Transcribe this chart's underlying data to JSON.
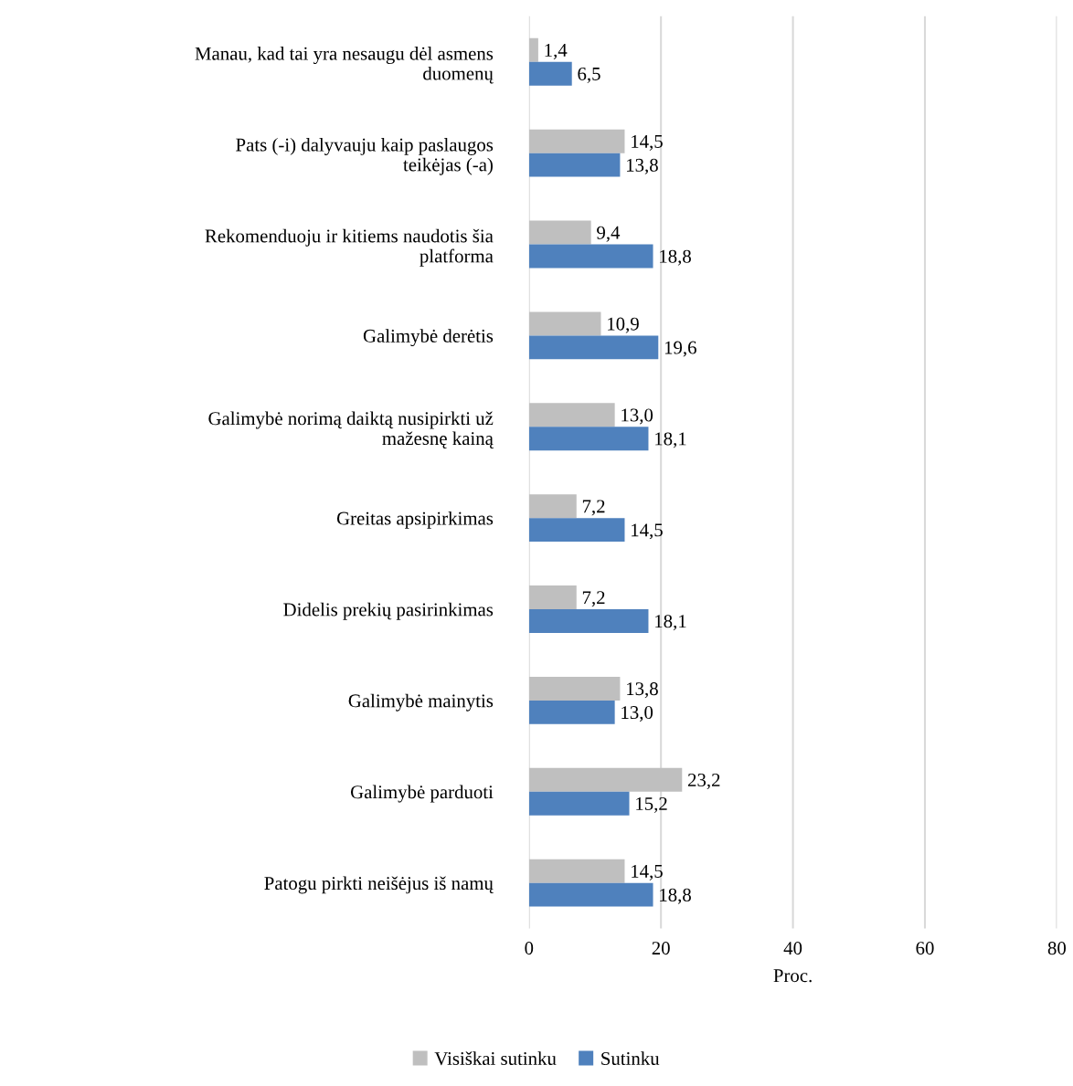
{
  "chart_data": {
    "type": "bar",
    "orientation": "horizontal",
    "categories": [
      "Manau, kad tai yra nesaugu dėl asmens duomenų",
      "Pats (-i) dalyvauju kaip paslaugos teikėjas (-a)",
      "Rekomenduoju ir kitiems naudotis šia platforma",
      "Galimybė derėtis",
      "Galimybė norimą daiktą nusipirkti už mažesnę kainą",
      "Greitas apsipirkimas",
      "Didelis prekių pasirinkimas",
      "Galimybė mainytis",
      "Galimybė parduoti",
      "Patogu pirkti neišėjus iš namų"
    ],
    "series": [
      {
        "name": "Visiškai sutinku",
        "color": "#bfbfbf",
        "values": [
          1.4,
          14.5,
          9.4,
          10.9,
          13.0,
          7.2,
          7.2,
          13.8,
          23.2,
          14.5
        ],
        "value_labels": [
          "1,4",
          "14,5",
          "9,4",
          "10,9",
          "13,0",
          "7,2",
          "7,2",
          "13,8",
          "23,2",
          "14,5"
        ]
      },
      {
        "name": "Sutinku",
        "color": "#4f81bd",
        "values": [
          6.5,
          13.8,
          18.8,
          19.6,
          18.1,
          14.5,
          18.1,
          13.0,
          15.2,
          18.8
        ],
        "value_labels": [
          "6,5",
          "13,8",
          "18,8",
          "19,6",
          "18,1",
          "14,5",
          "18,1",
          "13,0",
          "15,2",
          "18,8"
        ]
      }
    ],
    "xlabel": "Proc.",
    "xlim": [
      0,
      80
    ],
    "xticks": [
      0,
      20,
      40,
      60,
      80
    ],
    "grid": "x",
    "legend": "bottom"
  }
}
